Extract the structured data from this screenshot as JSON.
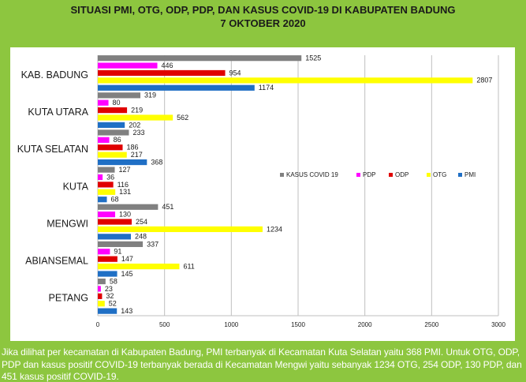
{
  "chart_data": {
    "type": "bar",
    "orientation": "horizontal",
    "title": [
      "SITUASI PMI, OTG, ODP, PDP, DAN KASUS COVID-19 DI KABUPATEN BADUNG",
      "7 OKTOBER 2020"
    ],
    "categories": [
      "KAB. BADUNG",
      "KUTA UTARA",
      "KUTA SELATAN",
      "KUTA",
      "MENGWI",
      "ABIANSEMAL",
      "PETANG"
    ],
    "series": [
      {
        "name": "KASUS COVID 19",
        "color": "#808080",
        "values": [
          1525,
          319,
          233,
          127,
          451,
          337,
          58
        ]
      },
      {
        "name": "PDP",
        "color": "#ff00ff",
        "values": [
          446,
          80,
          86,
          36,
          130,
          91,
          23
        ]
      },
      {
        "name": "ODP",
        "color": "#e00000",
        "values": [
          954,
          219,
          186,
          116,
          254,
          147,
          32
        ]
      },
      {
        "name": "OTG",
        "color": "#ffff00",
        "values": [
          2807,
          562,
          217,
          131,
          1234,
          611,
          52
        ]
      },
      {
        "name": "PMI",
        "color": "#1f6fc5",
        "values": [
          1174,
          202,
          368,
          68,
          248,
          145,
          143
        ]
      }
    ],
    "xlim": [
      0,
      3000
    ],
    "xticks": [
      0,
      500,
      1000,
      1500,
      2000,
      2500,
      3000
    ],
    "grid": true,
    "legend": "center-right",
    "data_labels": true
  },
  "caption": "Jika dilihat per kecamatan di Kabupaten Badung, PMI terbanyak di Kecamatan Kuta Selatan yaitu 368 PMI. Untuk OTG, ODP, PDP dan kasus positif COVID-19 terbanyak berada di Kecamatan Mengwi yaitu sebanyak 1234 OTG, 254 ODP, 130 PDP, dan 451 kasus positif COVID-19."
}
